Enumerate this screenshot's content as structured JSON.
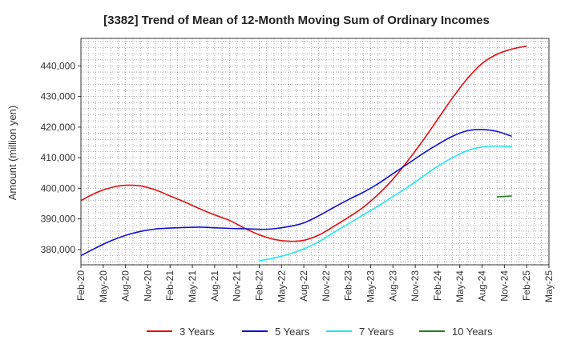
{
  "chart_data": {
    "type": "line",
    "title": "[3382]  Trend of Mean of 12-Month Moving Sum of Ordinary Incomes",
    "xlabel": "",
    "ylabel": "Amount (million yen)",
    "ylim": [
      375000,
      449000
    ],
    "yticks": [
      380000,
      390000,
      400000,
      410000,
      420000,
      430000,
      440000
    ],
    "ytick_labels": [
      "380,000",
      "390,000",
      "400,000",
      "410,000",
      "420,000",
      "430,000",
      "440,000"
    ],
    "x_categories": [
      "Feb-20",
      "May-20",
      "Aug-20",
      "Nov-20",
      "Feb-21",
      "May-21",
      "Aug-21",
      "Nov-21",
      "Feb-22",
      "May-22",
      "Aug-22",
      "Nov-22",
      "Feb-23",
      "May-23",
      "Aug-23",
      "Nov-23",
      "Feb-24",
      "May-24",
      "Aug-24",
      "Nov-24",
      "Feb-25",
      "May-25"
    ],
    "grid": true,
    "legend_position": "bottom",
    "series": [
      {
        "name": "3 Years",
        "color": "#e01010",
        "start_index": 0,
        "values": [
          396000,
          398500,
          400200,
          401000,
          400800,
          399500,
          397500,
          395500,
          393300,
          391300,
          389500,
          387000,
          384800,
          383300,
          382700,
          383000,
          384700,
          387500,
          390500,
          393800,
          398000,
          403000,
          409000,
          415500,
          422500,
          429500,
          435800,
          440800,
          443800,
          445500,
          446500
        ]
      },
      {
        "name": "5 Years",
        "color": "#1010d0",
        "start_index": 0,
        "values": [
          378000,
          380500,
          382800,
          384600,
          385900,
          386700,
          387000,
          387200,
          387300,
          387100,
          386900,
          386800,
          386600,
          386800,
          387500,
          388700,
          391000,
          393700,
          396300,
          398700,
          401500,
          404800,
          408000,
          411300,
          414300,
          417000,
          418800,
          419200,
          418600,
          417000
        ]
      },
      {
        "name": "7 Years",
        "color": "#20e8f0",
        "start_index": 24,
        "values": [
          376300,
          377200,
          378500,
          380200,
          382500,
          385500,
          388400,
          391300,
          394200,
          397300,
          400400,
          403800,
          407200,
          410000,
          412300,
          413500,
          413800,
          413600
        ]
      },
      {
        "name": "10 Years",
        "color": "#208020",
        "start_index": 56,
        "values": [
          397200,
          397500
        ]
      }
    ]
  }
}
